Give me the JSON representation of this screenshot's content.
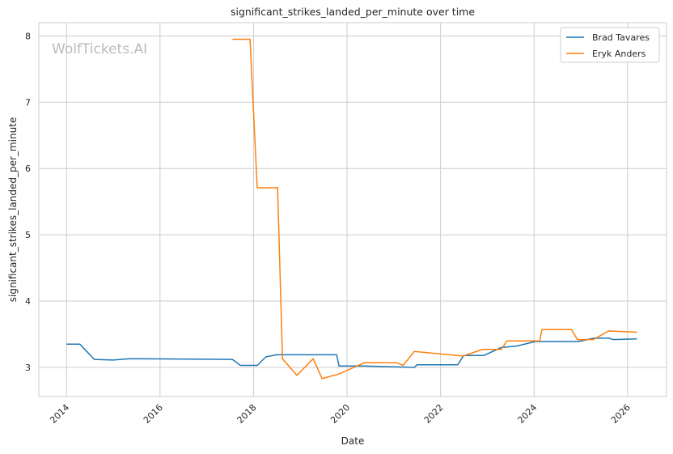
{
  "chart_data": {
    "type": "line",
    "title": "significant_strikes_landed_per_minute over time",
    "xlabel": "Date",
    "ylabel": "significant_strikes_landed_per_minute",
    "xlim": [
      "2013-05-30",
      "2026-11-01"
    ],
    "ylim": [
      2.56,
      8.2
    ],
    "xticks": [
      "2014",
      "2016",
      "2018",
      "2020",
      "2022",
      "2024",
      "2026"
    ],
    "yticks": [
      "3",
      "4",
      "5",
      "6",
      "7",
      "8"
    ],
    "grid": true,
    "legend": "top-right",
    "watermark": "WolfTickets.AI",
    "series": [
      {
        "name": "Brad Tavares",
        "color": "#1f77b4",
        "x": [
          "2014-01-01",
          "2014-04-15",
          "2014-08-07",
          "2015-01-01",
          "2015-05-08",
          "2017-07-20",
          "2017-09-20",
          "2018-01-30",
          "2018-04-08",
          "2018-07-01",
          "2019-10-12",
          "2019-10-30",
          "2020-05-15",
          "2021-06-10",
          "2021-07-01",
          "2022-05-15",
          "2022-07-01",
          "2022-12-05",
          "2023-04-20",
          "2023-08-15",
          "2024-01-12",
          "2024-12-15",
          "2025-04-12",
          "2025-08-08",
          "2025-09-12",
          "2026-03-15"
        ],
        "y": [
          3.35,
          3.35,
          3.12,
          3.11,
          3.13,
          3.12,
          3.03,
          3.03,
          3.16,
          3.19,
          3.19,
          3.02,
          3.02,
          3.0,
          3.04,
          3.04,
          3.18,
          3.18,
          3.3,
          3.32,
          3.39,
          3.39,
          3.44,
          3.44,
          3.42,
          3.43
        ]
      },
      {
        "name": "Eryk Anders",
        "color": "#ff7f0e",
        "x": [
          "2017-07-20",
          "2017-12-05",
          "2018-01-30",
          "2018-07-08",
          "2018-08-15",
          "2018-12-05",
          "2019-04-12",
          "2019-06-20",
          "2019-10-30",
          "2020-05-15",
          "2021-01-22",
          "2021-03-15",
          "2021-06-10",
          "2022-06-25",
          "2022-11-25",
          "2023-04-20",
          "2023-06-03",
          "2024-02-14",
          "2024-03-03",
          "2024-10-20",
          "2024-12-05",
          "2025-04-08",
          "2025-08-08",
          "2026-03-15"
        ],
        "y": [
          7.95,
          7.95,
          5.71,
          5.71,
          3.13,
          2.88,
          3.13,
          2.83,
          2.9,
          3.07,
          3.07,
          3.03,
          3.24,
          3.17,
          3.27,
          3.27,
          3.4,
          3.4,
          3.57,
          3.57,
          3.42,
          3.42,
          3.55,
          3.53
        ]
      }
    ]
  }
}
